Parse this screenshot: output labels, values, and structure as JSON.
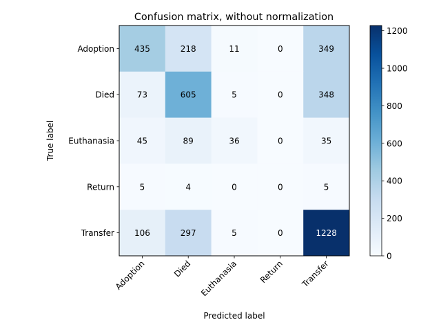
{
  "chart_data": {
    "type": "heatmap",
    "title": "Confusion matrix, without normalization",
    "xlabel": "Predicted label",
    "ylabel": "True label",
    "x_categories": [
      "Adoption",
      "Died",
      "Euthanasia",
      "Return",
      "Transfer"
    ],
    "y_categories": [
      "Adoption",
      "Died",
      "Euthanasia",
      "Return",
      "Transfer"
    ],
    "values": [
      [
        435,
        218,
        11,
        0,
        349
      ],
      [
        73,
        605,
        5,
        0,
        348
      ],
      [
        45,
        89,
        36,
        0,
        35
      ],
      [
        5,
        4,
        0,
        0,
        5
      ],
      [
        106,
        297,
        5,
        0,
        1228
      ]
    ],
    "colormap": "Blues",
    "colorbar": {
      "min": 0,
      "max": 1228,
      "ticks": [
        0,
        200,
        400,
        600,
        800,
        1000,
        1200
      ]
    },
    "text_threshold": 614,
    "grid": false
  }
}
